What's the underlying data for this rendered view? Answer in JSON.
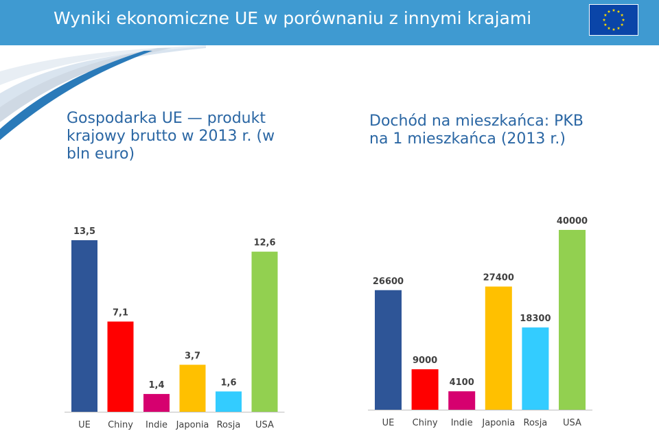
{
  "header": {
    "title": "Wyniki ekonomiczne UE w porównaniu z innymi krajami",
    "flag_icon": "eu-flag-icon"
  },
  "colors": {
    "header_bg": "#3f9ad1",
    "subtitle_text": "#2a66a3",
    "series_colors": [
      "#2e5597",
      "#ff0000",
      "#d6006f",
      "#ffc000",
      "#33ccff",
      "#92d050"
    ]
  },
  "chart_data": [
    {
      "type": "bar",
      "title": "Gospodarka UE — produkt\nkrajowy brutto w 2013 r. (w\nbln euro)",
      "categories": [
        "UE",
        "Chiny",
        "Indie",
        "Japonia",
        "Rosja",
        "USA"
      ],
      "values": [
        13.5,
        7.1,
        1.4,
        3.7,
        1.6,
        12.6
      ],
      "value_labels": [
        "13,5",
        "7,1",
        "1,4",
        "3,7",
        "1,6",
        "12,6"
      ],
      "xlabel": "",
      "ylabel": "",
      "ylim": [
        0,
        13.5
      ],
      "grid": false,
      "legend": "none"
    },
    {
      "type": "bar",
      "title": "Dochód na mieszkańca: PKB\nna 1 mieszkańca (2013 r.)",
      "categories": [
        "UE",
        "Chiny",
        "Indie",
        "Japonia",
        "Rosja",
        "USA"
      ],
      "values": [
        26600,
        9000,
        4100,
        27400,
        18300,
        40000
      ],
      "value_labels": [
        "26600",
        "9000",
        "4100",
        "27400",
        "18300",
        "40000"
      ],
      "xlabel": "",
      "ylabel": "",
      "ylim": [
        0,
        40000
      ],
      "grid": false,
      "legend": "none"
    }
  ]
}
